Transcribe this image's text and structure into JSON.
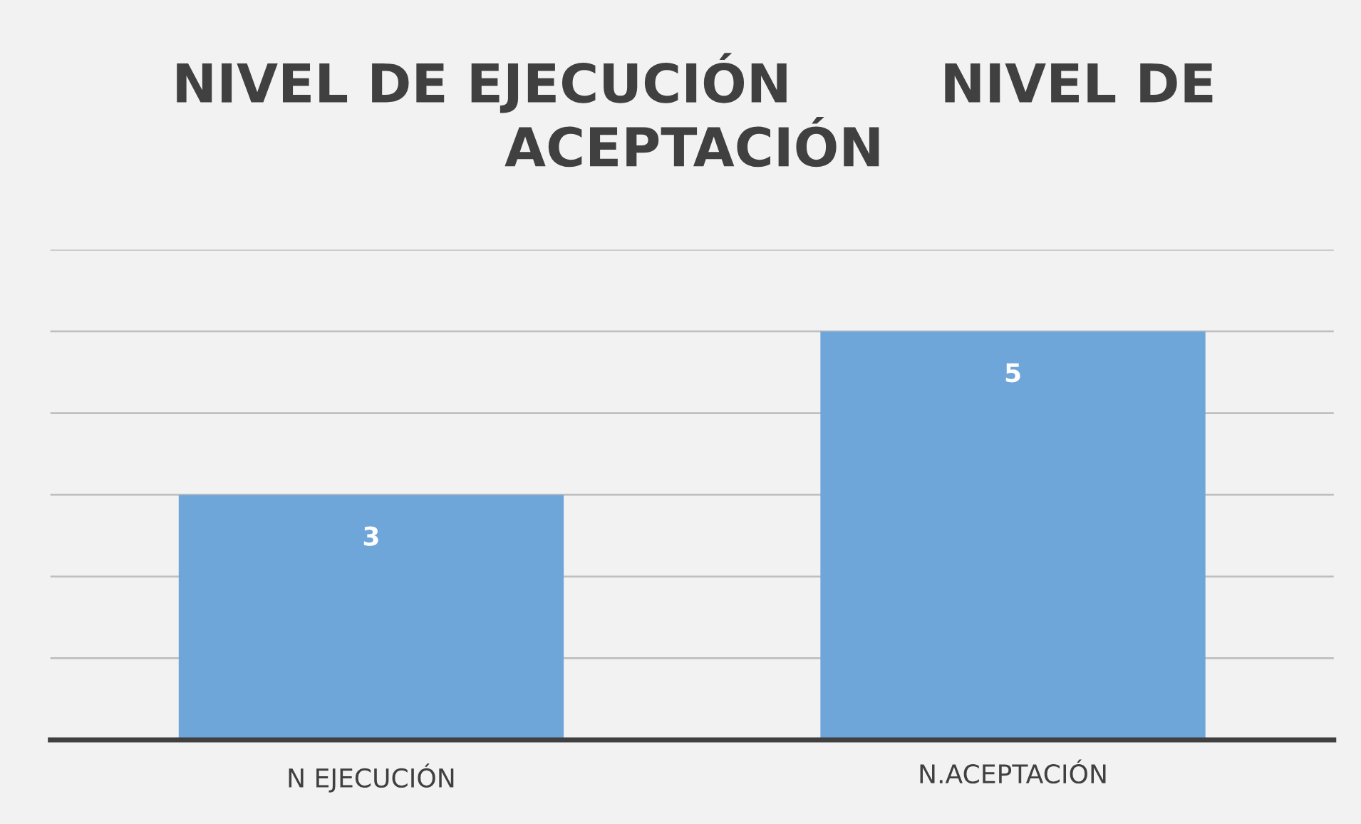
{
  "chart_data": {
    "type": "bar",
    "title": "NIVEL DE EJECUCIÓN        NIVEL DE\nACEPTACIÓN",
    "categories": [
      "N EJECUCIÓN",
      "N.ACEPTACIÓN"
    ],
    "values": [
      3,
      5
    ],
    "color": "#6fa6da",
    "ylim": [
      0,
      6
    ],
    "yticks": [
      {
        "value": 0,
        "label": null
      },
      {
        "value": 1,
        "label": null
      },
      {
        "value": 2,
        "label": null
      },
      {
        "value": 3,
        "label": null
      },
      {
        "value": 4,
        "label": null
      },
      {
        "value": 5,
        "label": null
      },
      {
        "value": 6,
        "label": null
      }
    ],
    "tick_labels": "x",
    "grid": "y",
    "data_labels": true
  }
}
